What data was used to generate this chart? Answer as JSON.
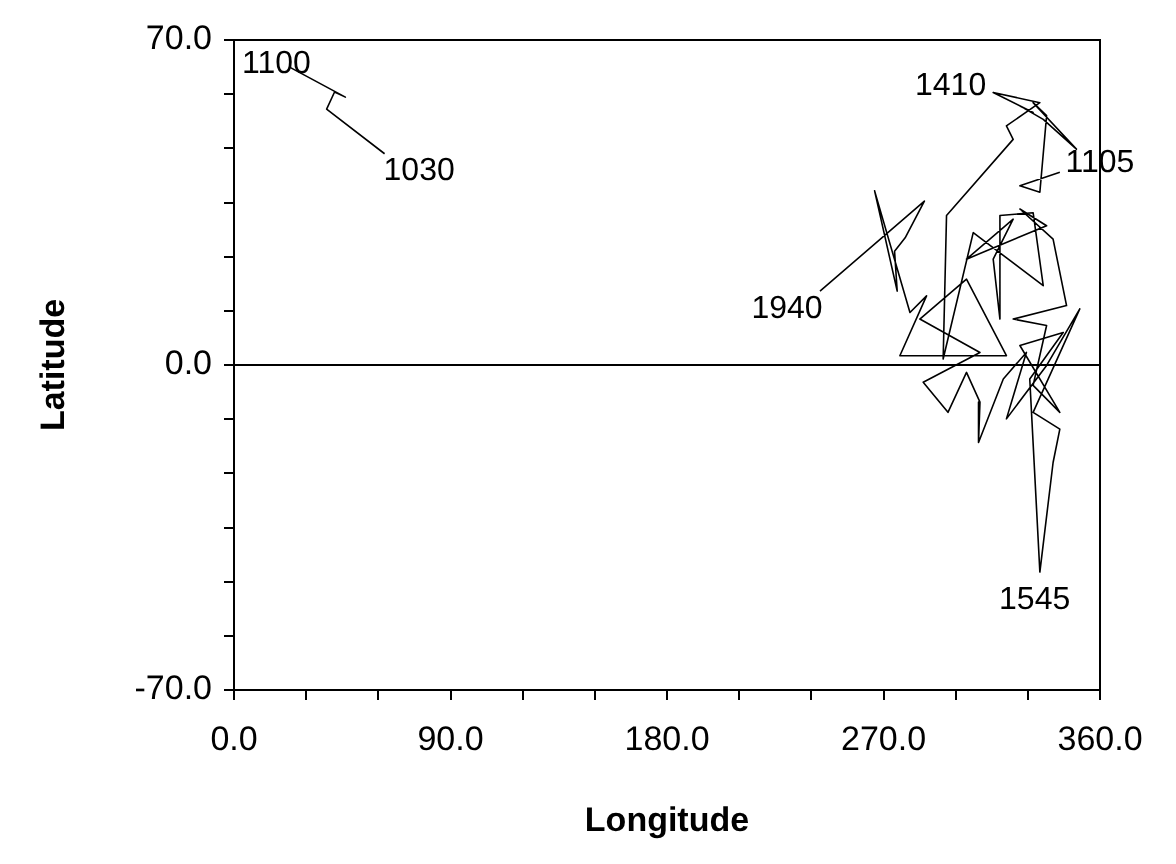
{
  "chart_data": {
    "type": "line",
    "xlabel": "Longitude",
    "ylabel": "Latitude",
    "xlim": [
      0,
      360
    ],
    "ylim": [
      -70,
      70
    ],
    "xticks": [
      {
        "value": 0,
        "label": "0.0"
      },
      {
        "value": 30,
        "label": null
      },
      {
        "value": 60,
        "label": null
      },
      {
        "value": 90,
        "label": "90.0"
      },
      {
        "value": 120,
        "label": null
      },
      {
        "value": 150,
        "label": null
      },
      {
        "value": 180,
        "label": "180.0"
      },
      {
        "value": 210,
        "label": null
      },
      {
        "value": 240,
        "label": null
      },
      {
        "value": 270,
        "label": "270.0"
      },
      {
        "value": 300,
        "label": null
      },
      {
        "value": 330,
        "label": null
      },
      {
        "value": 360,
        "label": "360.0"
      }
    ],
    "yticks": [
      {
        "value": -70,
        "label": "-70.0"
      },
      {
        "value": -58.3,
        "label": null
      },
      {
        "value": -46.7,
        "label": null
      },
      {
        "value": -35,
        "label": null
      },
      {
        "value": -23.3,
        "label": null
      },
      {
        "value": -11.7,
        "label": null
      },
      {
        "value": 0,
        "label": "0.0"
      },
      {
        "value": 11.7,
        "label": null
      },
      {
        "value": 23.3,
        "label": null
      },
      {
        "value": 35,
        "label": null
      },
      {
        "value": 46.7,
        "label": null
      },
      {
        "value": 58.3,
        "label": null
      },
      {
        "value": 70,
        "label": "70.0"
      }
    ],
    "marker": "none",
    "line_style": "solid",
    "ref_lines": [
      {
        "axis": "y",
        "value": 0,
        "color": "#000000"
      }
    ],
    "annotations": [
      {
        "text": "1100",
        "x": 23.3,
        "y": 64.1
      },
      {
        "text": "1030",
        "x": 62.6,
        "y": 45.5
      },
      {
        "text": "1940",
        "x": 243.6,
        "y": 15.9
      },
      {
        "text": "1545",
        "x": 335.0,
        "y": -44.6
      },
      {
        "text": "1410",
        "x": 315.6,
        "y": 58.7
      },
      {
        "text": "1105",
        "x": 343.3,
        "y": 41.5
      }
    ],
    "series": [
      {
        "color": "#000000",
        "x": [
          23.3,
          46.3,
          41.8,
          38.5,
          62.6
        ],
        "values": [
          64.1,
          57.7,
          58.8,
          55.1,
          45.5
        ]
      },
      {
        "color": "#000000",
        "x": [
          243.6,
          287.0,
          279.0,
          274.6,
          275.7,
          266.3,
          281.0,
          287.9,
          276.8,
          321.1,
          304.5,
          285.1,
          310.1,
          286.5,
          296.8,
          304.5,
          310.1,
          309.5,
          319.8,
          329.4,
          321.1,
          337.8,
          351.6,
          332.2,
          343.3,
          340.5,
          335.0,
          330.8,
          344.7,
          326.7,
          343.3,
          332.2,
          337.8,
          323.9,
          346.1,
          340.5,
          326.7,
          337.8,
          304.5,
          323.9,
          315.6,
          318.4,
          318.4,
          332.2,
          336.4,
          307.3,
          294.8,
          296.2,
          323.9,
          321.1,
          335.0,
          315.6,
          332.2,
          326.7,
          336.4,
          350.2,
          332.2,
          337.8,
          335.0,
          326.7,
          343.3
        ],
        "values": [
          15.9,
          35.3,
          27.4,
          24.5,
          15.9,
          37.5,
          11.3,
          14.9,
          2.0,
          2.0,
          18.5,
          9.9,
          2.7,
          -3.7,
          -10.2,
          -1.6,
          -8.0,
          -16.7,
          -3.0,
          2.7,
          -11.6,
          -0.1,
          12.1,
          -10.2,
          -13.8,
          -21.0,
          -44.6,
          -3.0,
          7.0,
          4.2,
          -10.2,
          -4.4,
          8.5,
          9.9,
          12.8,
          27.1,
          33.6,
          30.0,
          22.8,
          31.4,
          22.8,
          9.9,
          32.2,
          32.8,
          17.1,
          28.5,
          1.3,
          32.2,
          48.6,
          51.5,
          56.5,
          58.7,
          54.4,
          55.8,
          52.9,
          46.5,
          56.5,
          53.7,
          37.2,
          38.6,
          41.5
        ]
      }
    ]
  }
}
